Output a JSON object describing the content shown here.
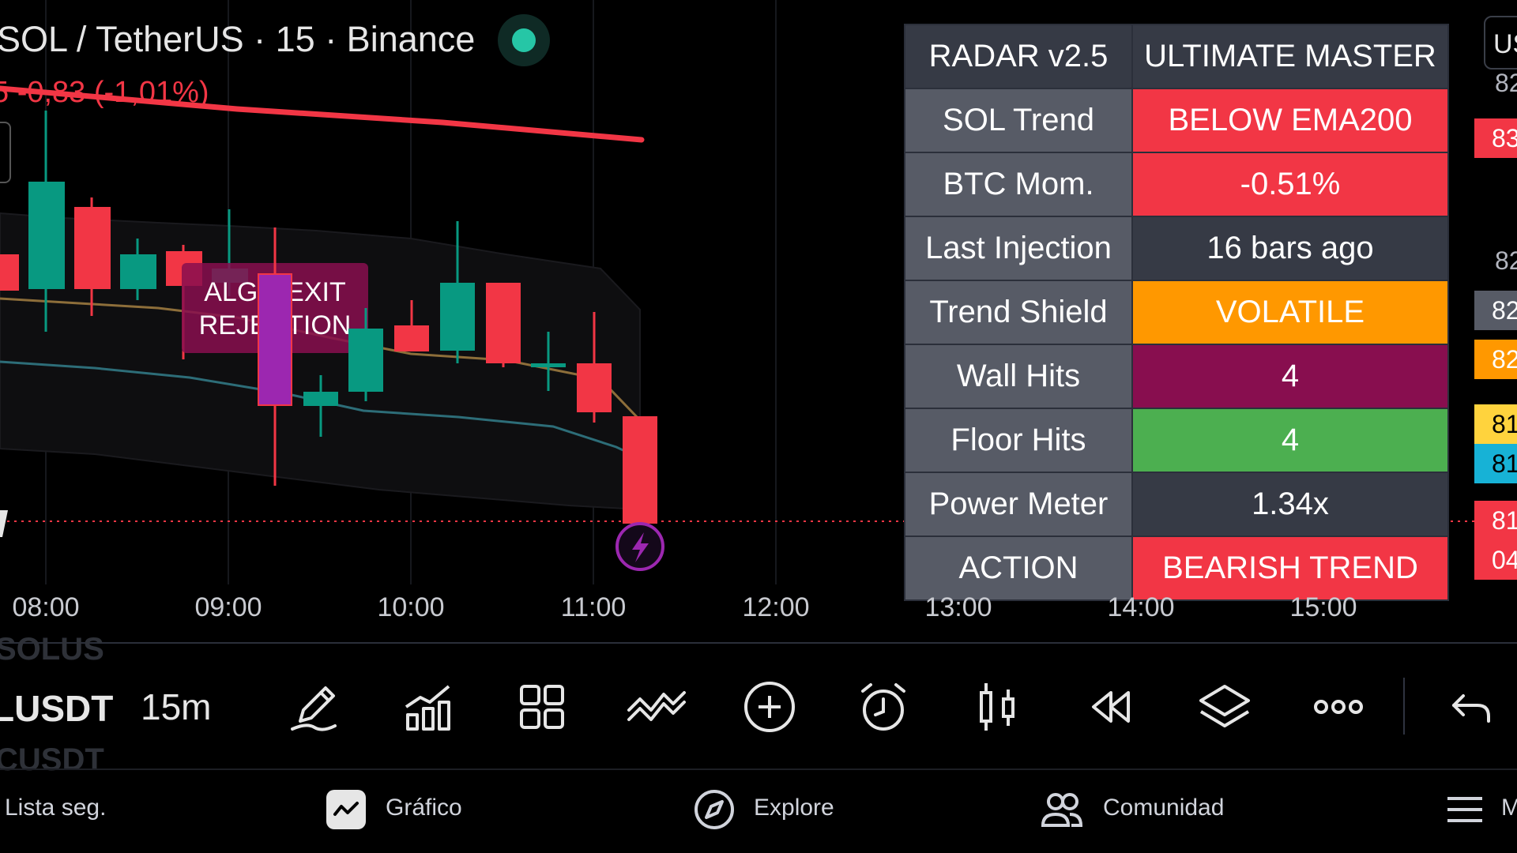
{
  "header": {
    "symbol_title": "SOL / TetherUS · 15 · Binance",
    "price_change": "5  -0,83 (-1,01%)"
  },
  "chart": {
    "label_line1": "ALGO EXIT",
    "label_line2": "REJECTION",
    "colors": {
      "bull": "#089981",
      "bear": "#f23645",
      "purple": "#9c27b0",
      "ema": "#f23645"
    }
  },
  "radar_table": {
    "title_left": "RADAR v2.5",
    "title_right": "ULTIMATE MASTER",
    "rows": [
      {
        "key": "SOL Trend",
        "value": "BELOW EMA200",
        "color": "#f23645"
      },
      {
        "key": "BTC Mom.",
        "value": "-0.51%",
        "color": "#f23645"
      },
      {
        "key": "Last Injection",
        "value": "16 bars ago",
        "color": "#363a45"
      },
      {
        "key": "Trend Shield",
        "value": "VOLATILE",
        "color": "#ff9800"
      },
      {
        "key": "Wall Hits",
        "value": "4",
        "color": "#880e4f"
      },
      {
        "key": "Floor Hits",
        "value": "4",
        "color": "#4caf50"
      },
      {
        "key": "Power Meter",
        "value": "1.34x",
        "color": "#363a45"
      },
      {
        "key": "ACTION",
        "value": "BEARISH TREND",
        "color": "#f23645"
      }
    ]
  },
  "price_scale": {
    "unit_button": "US",
    "labels": [
      {
        "text": "82",
        "bg": "",
        "plain": true
      },
      {
        "text": "83",
        "bg": "#f23645"
      },
      {
        "text": "82",
        "bg": "",
        "plain": true
      },
      {
        "text": "82",
        "bg": "#575b66"
      },
      {
        "text": "82",
        "bg": "#ff9800"
      },
      {
        "text": "81",
        "bg": "#ffd33d"
      },
      {
        "text": "81",
        "bg": "#17b2d6"
      },
      {
        "text": "81",
        "bg": "#f23645"
      },
      {
        "text": "04",
        "bg": "#f23645"
      }
    ]
  },
  "time_axis": [
    "08:00",
    "09:00",
    "10:00",
    "11:00",
    "12:00",
    "13:00",
    "14:00",
    "15:00"
  ],
  "toolbar": {
    "ghost_top": "SOLUS",
    "symbol": "LUSDT",
    "ghost_bottom": "CUSDT",
    "interval": "15m",
    "icons": [
      "pencil-icon",
      "bar-chart-icon",
      "grid-icon",
      "indicators-icon",
      "plus-circle-icon",
      "alarm-icon",
      "candle-icon",
      "rewind-icon",
      "layers-icon",
      "more-icon",
      "undo-icon"
    ]
  },
  "bottom_nav": {
    "watchlist": "Lista seg.",
    "chart": "Gráfico",
    "explore": "Explore",
    "community": "Comunidad",
    "menu": "M"
  }
}
